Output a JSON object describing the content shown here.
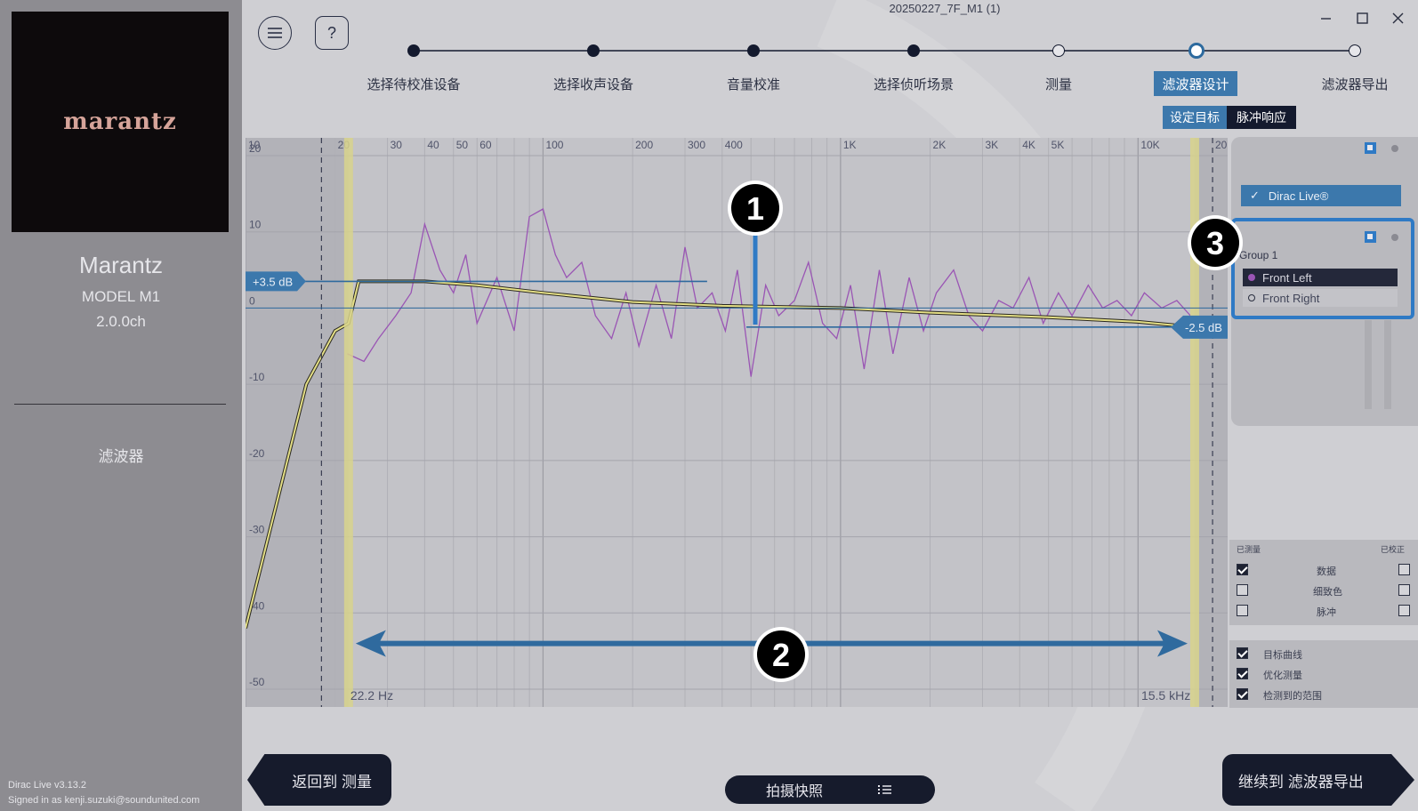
{
  "window": {
    "title": "20250227_7F_M1 (1)",
    "controls": [
      "minimize-icon",
      "maximize-icon",
      "close-icon"
    ]
  },
  "sidebar": {
    "logo": "marantz",
    "brand": "Marantz",
    "model": "MODEL M1",
    "channels": "2.0.0ch",
    "section": "滤波器",
    "version": "Dirac Live v3.13.2",
    "signed_in": "Signed in as kenji.suzuki@soundunited.com"
  },
  "toolbar": {
    "menu_icon": "menu-icon",
    "help_label": "?"
  },
  "steps": [
    {
      "label": "选择待校准设备",
      "state": "done"
    },
    {
      "label": "选择收声设备",
      "state": "done"
    },
    {
      "label": "音量校准",
      "state": "done"
    },
    {
      "label": "选择侦听场景",
      "state": "done"
    },
    {
      "label": "测量",
      "state": "todo"
    },
    {
      "label": "滤波器设计",
      "state": "active"
    },
    {
      "label": "滤波器导出",
      "state": "todo"
    }
  ],
  "subtabs": {
    "target": "设定目标",
    "impulse": "脉冲响应"
  },
  "chart_data": {
    "type": "line",
    "xscale": "log",
    "xlim": [
      10,
      20000
    ],
    "ylim": [
      -50,
      20
    ],
    "x_ticks": [
      "10",
      "20",
      "30",
      "40",
      "50",
      "60",
      "100",
      "200",
      "300",
      "400",
      "1K",
      "2K",
      "3K",
      "4K",
      "5K",
      "10K",
      "20"
    ],
    "y_ticks": [
      "20",
      "10",
      "0",
      "-10",
      "-20",
      "-30",
      "-40",
      "-50"
    ],
    "low_cutoff_label": "22.2 Hz",
    "high_cutoff_label": "15.5 kHz",
    "low_cutoff_hz": 22.2,
    "high_cutoff_hz": 15500,
    "left_gain_label": "+3.5 dB",
    "right_gain_label": "-2.5 dB",
    "series": [
      {
        "color": "#9a55b4",
        "x": [
          22,
          25,
          28,
          32,
          36,
          40,
          45,
          50,
          55,
          60,
          70,
          80,
          90,
          100,
          110,
          120,
          135,
          150,
          170,
          190,
          210,
          240,
          270,
          300,
          330,
          370,
          410,
          450,
          500,
          560,
          620,
          700,
          780,
          870,
          970,
          1080,
          1200,
          1350,
          1500,
          1700,
          1900,
          2100,
          2400,
          2700,
          3000,
          3400,
          3800,
          4300,
          4800,
          5400,
          6000,
          6800,
          7600,
          8500,
          9500,
          10500,
          12000,
          13500,
          15000
        ],
        "y": [
          -6,
          -7,
          -4,
          -1,
          2,
          11,
          5,
          2,
          7,
          -2,
          4,
          -3,
          12,
          13,
          7,
          4,
          6,
          -1,
          -4,
          2,
          -5,
          3,
          -4,
          8,
          0,
          2,
          -3,
          5,
          -9,
          3,
          -1,
          1,
          6,
          -2,
          -4,
          3,
          -8,
          5,
          -6,
          4,
          -3,
          2,
          5,
          -1,
          -3,
          1,
          0,
          4,
          -2,
          2,
          -1,
          3,
          0,
          1,
          -1,
          2,
          0,
          1,
          -1
        ]
      },
      {
        "color": "#e4df86",
        "x": [
          10,
          16,
          20,
          22.2,
          24,
          30,
          40,
          60,
          100,
          200,
          400,
          1000,
          2000,
          5000,
          10000,
          15500
        ],
        "y": [
          -42,
          -10,
          -3,
          -2,
          3.5,
          3.5,
          3.5,
          3.0,
          2.0,
          0.8,
          0.3,
          0.0,
          -0.6,
          -1.2,
          -1.8,
          -2.5
        ]
      }
    ]
  },
  "legend_panel": {
    "dirac_label": "Dirac Live®",
    "group_label": "Group 1",
    "channels": [
      {
        "name": "Front Left",
        "selected": true,
        "color": "#9a55b4"
      },
      {
        "name": "Front Right",
        "selected": false,
        "color": "#2a2f40"
      }
    ]
  },
  "checkbox_panel": {
    "col_left": "已测量",
    "col_right": "已校正",
    "rows": [
      {
        "label": "数据",
        "left": true,
        "right": false
      },
      {
        "label": "细致色",
        "left": false,
        "right": false
      },
      {
        "label": "脉冲",
        "left": false,
        "right": false
      }
    ],
    "toggles": [
      {
        "label": "目标曲线",
        "checked": true
      },
      {
        "label": "优化测量",
        "checked": true
      },
      {
        "label": "检测到的范围",
        "checked": true
      }
    ]
  },
  "callouts": [
    "1",
    "2",
    "3"
  ],
  "bottom": {
    "back_label": "返回到 测量",
    "snapshot_label": "拍摄快照",
    "next_label": "继续到 滤波器导出"
  }
}
